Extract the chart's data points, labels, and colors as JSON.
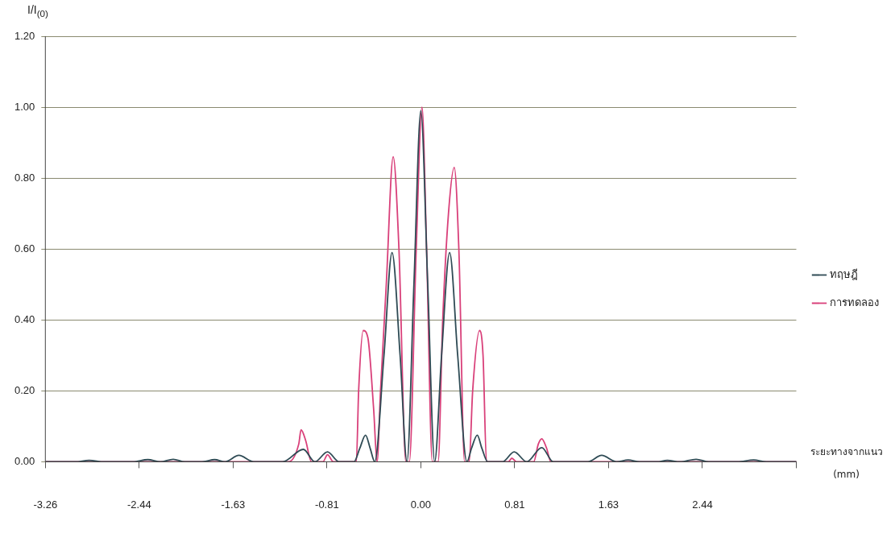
{
  "chart_data": {
    "type": "line",
    "ylabel": "I/I$_{(0)}$",
    "xlabel": "ระยะทางจากแนว\n(mm)",
    "xlim": [
      -3.26,
      3.26
    ],
    "xticks": [
      {
        "value": -3.26,
        "label": "-3.26"
      },
      {
        "value": -2.445,
        "label": "-2.44"
      },
      {
        "value": -1.63,
        "label": "-1.63"
      },
      {
        "value": -0.815,
        "label": "-0.81"
      },
      {
        "value": 0,
        "label": "0.00"
      },
      {
        "value": 0.815,
        "label": "0.81"
      },
      {
        "value": 1.63,
        "label": "1.63"
      },
      {
        "value": 2.445,
        "label": "2.44"
      },
      {
        "value": 3.26,
        "label": null
      }
    ],
    "ylim": [
      0,
      1.2
    ],
    "yticks": [
      {
        "value": 0,
        "label": "0.00"
      },
      {
        "value": 0.2,
        "label": "0.20"
      },
      {
        "value": 0.4,
        "label": "0.40"
      },
      {
        "value": 0.6,
        "label": "0.60"
      },
      {
        "value": 0.8,
        "label": "0.80"
      },
      {
        "value": 1,
        "label": "1.00"
      },
      {
        "value": 1.2,
        "label": "1.20"
      }
    ],
    "grid": "y",
    "legend": "right",
    "marker": "none",
    "line_style": "solid",
    "series": [
      {
        "name": "ทฤษฎี",
        "color": "#2f4b55",
        "x": [
          -3.26,
          -3.0,
          -2.88,
          -2.75,
          -2.5,
          -2.37,
          -2.26,
          -2.15,
          -2.05,
          -1.9,
          -1.79,
          -1.7,
          -1.58,
          -1.45,
          -1.2,
          -1.02,
          -0.92,
          -0.81,
          -0.71,
          -0.58,
          -0.53,
          -0.48,
          -0.44,
          -0.4,
          -0.32,
          -0.25,
          -0.18,
          -0.12,
          -0.06,
          0,
          0.06,
          0.12,
          0.18,
          0.25,
          0.32,
          0.4,
          0.44,
          0.49,
          0.53,
          0.58,
          0.71,
          0.81,
          0.92,
          1.05,
          1.15,
          1.45,
          1.57,
          1.7,
          1.8,
          1.9,
          2.05,
          2.14,
          2.25,
          2.39,
          2.5,
          2.75,
          2.89,
          3.0,
          3.26
        ],
        "values": [
          0,
          0,
          0.004,
          0,
          0,
          0.006,
          0,
          0.007,
          0,
          0,
          0.006,
          0,
          0.018,
          0,
          0,
          0.035,
          0,
          0.028,
          0,
          0,
          0.038,
          0.075,
          0.038,
          0,
          0.3,
          0.59,
          0.3,
          0,
          0.5,
          0.99,
          0.5,
          0,
          0.3,
          0.59,
          0.3,
          0,
          0.038,
          0.075,
          0.038,
          0,
          0,
          0.028,
          0,
          0.04,
          0,
          0,
          0.018,
          0,
          0.005,
          0,
          0,
          0.004,
          0,
          0.007,
          0,
          0,
          0.005,
          0,
          0
        ]
      },
      {
        "name": "การทดลอง",
        "color": "#d9407a",
        "x": [
          -3.26,
          -1.15,
          -1.06,
          -1.04,
          -1.0,
          -0.95,
          -0.85,
          -0.81,
          -0.76,
          -0.56,
          -0.54,
          -0.5,
          -0.46,
          -0.41,
          -0.38,
          -0.35,
          -0.3,
          -0.24,
          -0.19,
          -0.13,
          -0.1,
          -0.04,
          0.01,
          0.05,
          0.1,
          0.15,
          0.19,
          0.24,
          0.29,
          0.33,
          0.38,
          0.42,
          0.45,
          0.51,
          0.54,
          0.57,
          0.76,
          0.79,
          0.83,
          0.98,
          1.02,
          1.05,
          1.09,
          1.13,
          3.26
        ],
        "values": [
          0,
          0,
          0.05,
          0.09,
          0.06,
          0,
          0,
          0.02,
          0,
          0,
          0.2,
          0.37,
          0.35,
          0.15,
          0,
          0.2,
          0.5,
          0.86,
          0.6,
          0,
          0,
          0.6,
          1.0,
          0.6,
          0,
          0,
          0.4,
          0.7,
          0.83,
          0.6,
          0,
          0,
          0.2,
          0.37,
          0.3,
          0,
          0,
          0.01,
          0,
          0,
          0.05,
          0.065,
          0.04,
          0,
          0
        ]
      }
    ]
  }
}
